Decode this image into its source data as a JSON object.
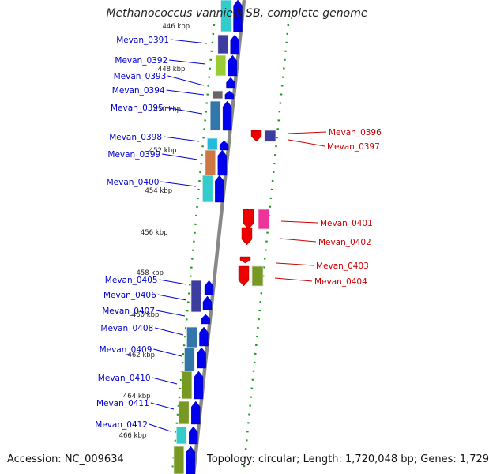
{
  "title": "Methanococcus vannielii SB, complete genome",
  "footer": {
    "accession": "Accession: NC_009634",
    "summary": "Topology: circular; Length: 1,720,048 bp; Genes: 1,729"
  },
  "colors": {
    "forward_strand": "#0000ee",
    "reverse_strand": "#ee0000",
    "backbone": "#888888",
    "tick_marks": "#1a9a1a",
    "label_left": "#0000cc",
    "label_right": "#cc0000"
  },
  "scale_labels": [
    "446 kbp",
    "448 kbp",
    "450 kbp",
    "452 kbp",
    "454 kbp",
    "456 kbp",
    "458 kbp",
    "460 kbp",
    "462 kbp",
    "464 kbp",
    "466 kbp"
  ],
  "forward_genes": [
    "Mevan_0391",
    "Mevan_0392",
    "Mevan_0393",
    "Mevan_0394",
    "Mevan_0395",
    "Mevan_0398",
    "Mevan_0399",
    "Mevan_0400",
    "Mevan_0405",
    "Mevan_0406",
    "Mevan_0407",
    "Mevan_0408",
    "Mevan_0409",
    "Mevan_0410",
    "Mevan_0411",
    "Mevan_0412"
  ],
  "reverse_genes": [
    "Mevan_0396",
    "Mevan_0397",
    "Mevan_0401",
    "Mevan_0402",
    "Mevan_0403",
    "Mevan_0404"
  ]
}
